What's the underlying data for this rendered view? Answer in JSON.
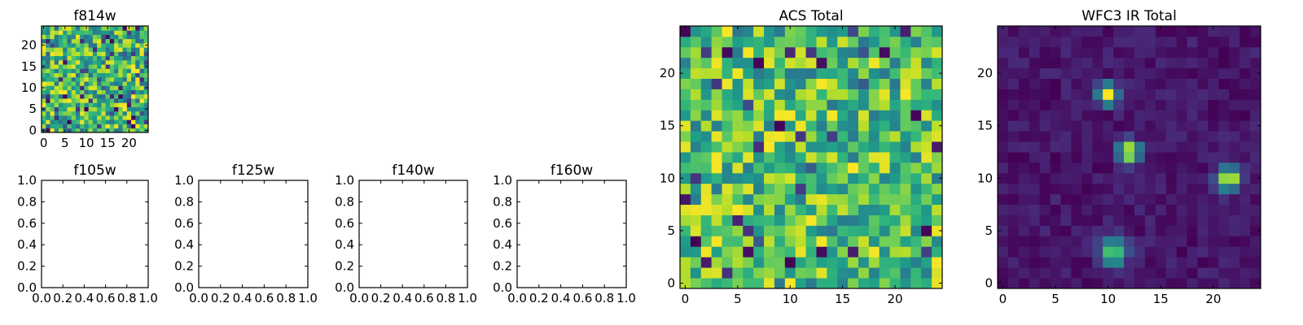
{
  "chart_data": [
    {
      "type": "heatmap",
      "title": "f814w",
      "colormap": "viridis",
      "grid_size": 25,
      "x_ticks": [
        "0",
        "5",
        "10",
        "15",
        "20"
      ],
      "y_ticks": [
        "0",
        "5",
        "10",
        "15",
        "20"
      ],
      "noise": {
        "seed": 814,
        "min": 0.35,
        "max": 1.0,
        "low_fraction": 0.08
      }
    },
    {
      "type": "heatmap",
      "title": "ACS Total",
      "colormap": "viridis",
      "grid_size": 25,
      "x_ticks": [
        "0",
        "5",
        "10",
        "15",
        "20"
      ],
      "y_ticks": [
        "0",
        "5",
        "10",
        "15",
        "20"
      ],
      "noise": {
        "seed": 2024,
        "min": 0.4,
        "max": 1.0,
        "low_fraction": 0.06
      }
    },
    {
      "type": "heatmap",
      "title": "WFC3 IR Total",
      "colormap": "viridis",
      "grid_size": 25,
      "x_ticks": [
        "0",
        "5",
        "10",
        "15",
        "20"
      ],
      "y_ticks": [
        "0",
        "5",
        "10",
        "15",
        "20"
      ],
      "noise": {
        "seed": 333,
        "min": 0.0,
        "max": 0.12,
        "low_fraction": 0
      },
      "sources": [
        {
          "x": 10,
          "y": 18,
          "peak": 1.0,
          "sigma": 0.65
        },
        {
          "x": 12,
          "y": 12.5,
          "peak": 1.0,
          "sigma": 0.7
        },
        {
          "x": 21.5,
          "y": 10,
          "peak": 1.0,
          "sigma": 0.75
        },
        {
          "x": 10.5,
          "y": 3,
          "peak": 0.75,
          "sigma": 0.9
        }
      ]
    },
    {
      "type": "empty",
      "title": "f105w",
      "x_ticks": [
        "0.0",
        "0.2",
        "0.4",
        "0.6",
        "0.8",
        "1.0"
      ],
      "y_ticks": [
        "0.0",
        "0.2",
        "0.4",
        "0.6",
        "0.8",
        "1.0"
      ]
    },
    {
      "type": "empty",
      "title": "f125w",
      "x_ticks": [
        "0.0",
        "0.2",
        "0.4",
        "0.6",
        "0.8",
        "1.0"
      ],
      "y_ticks": [
        "0.0",
        "0.2",
        "0.4",
        "0.6",
        "0.8",
        "1.0"
      ]
    },
    {
      "type": "empty",
      "title": "f140w",
      "x_ticks": [
        "0.0",
        "0.2",
        "0.4",
        "0.6",
        "0.8",
        "1.0"
      ],
      "y_ticks": [
        "0.0",
        "0.2",
        "0.4",
        "0.6",
        "0.8",
        "1.0"
      ]
    },
    {
      "type": "empty",
      "title": "f160w",
      "x_ticks": [
        "0.0",
        "0.2",
        "0.4",
        "0.6",
        "0.8",
        "1.0"
      ],
      "y_ticks": [
        "0.0",
        "0.2",
        "0.4",
        "0.6",
        "0.8",
        "1.0"
      ]
    }
  ]
}
